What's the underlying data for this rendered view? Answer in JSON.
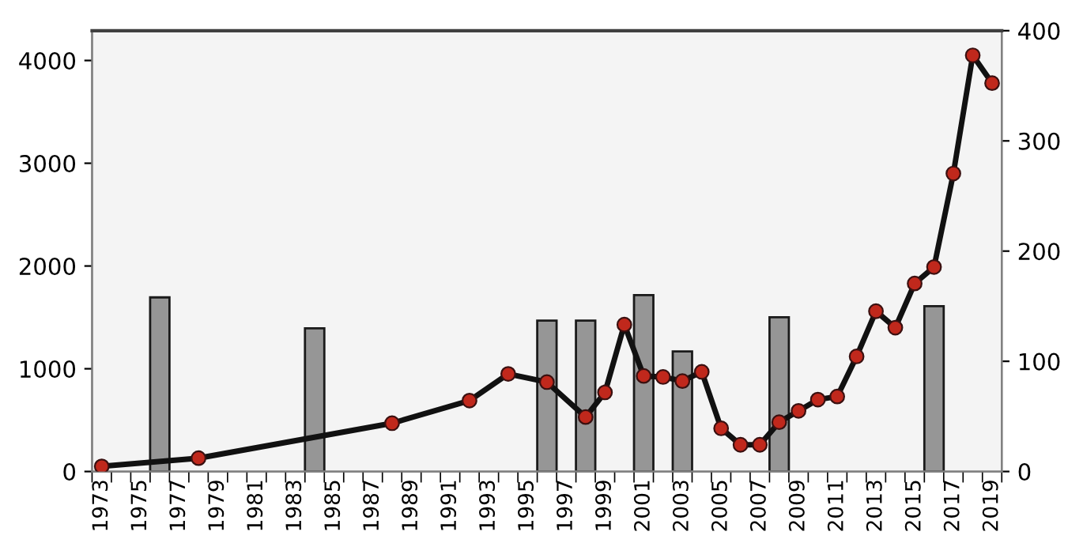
{
  "chart_data": {
    "type": "bar",
    "categories": [
      "1973",
      null,
      "1975",
      null,
      "1977",
      null,
      "1979",
      null,
      "1981",
      null,
      "1983",
      null,
      "1985",
      null,
      "1987",
      null,
      "1989",
      null,
      "1991",
      null,
      "1993",
      null,
      "1995",
      null,
      "1997",
      null,
      "1999",
      null,
      "2001",
      null,
      "2003",
      null,
      "2005",
      null,
      "2007",
      null,
      "2009",
      null,
      "2011",
      null,
      "2013",
      null,
      "2015",
      null,
      "2017",
      null,
      "2019"
    ],
    "series": [
      {
        "axis": "y2",
        "color": "#969696",
        "values": [
          null,
          null,
          null,
          158,
          null,
          null,
          null,
          null,
          null,
          null,
          null,
          130,
          null,
          null,
          null,
          null,
          null,
          null,
          null,
          null,
          null,
          null,
          null,
          137,
          null,
          137,
          null,
          null,
          160,
          null,
          109,
          null,
          null,
          null,
          null,
          140,
          null,
          null,
          null,
          null,
          null,
          null,
          null,
          150,
          null,
          null,
          null
        ]
      },
      {
        "type": "line",
        "color": "#c0281c",
        "marker": "circle",
        "line_style": "solid",
        "values": [
          50,
          null,
          null,
          null,
          null,
          130,
          null,
          null,
          null,
          null,
          null,
          null,
          null,
          null,
          null,
          470,
          null,
          null,
          null,
          690,
          null,
          950,
          null,
          870,
          null,
          530,
          770,
          1430,
          930,
          920,
          880,
          970,
          420,
          260,
          260,
          480,
          590,
          700,
          730,
          1120,
          1560,
          1400,
          1830,
          1990,
          2900,
          4050,
          3780
        ]
      }
    ],
    "ylim": [
      0,
      4290
    ],
    "yticks": [
      0,
      1000,
      2000,
      3000,
      4000
    ],
    "y2lim": [
      0,
      400
    ],
    "y2ticks": [
      0,
      100,
      200,
      300,
      400
    ],
    "grid": false,
    "legend": false
  }
}
